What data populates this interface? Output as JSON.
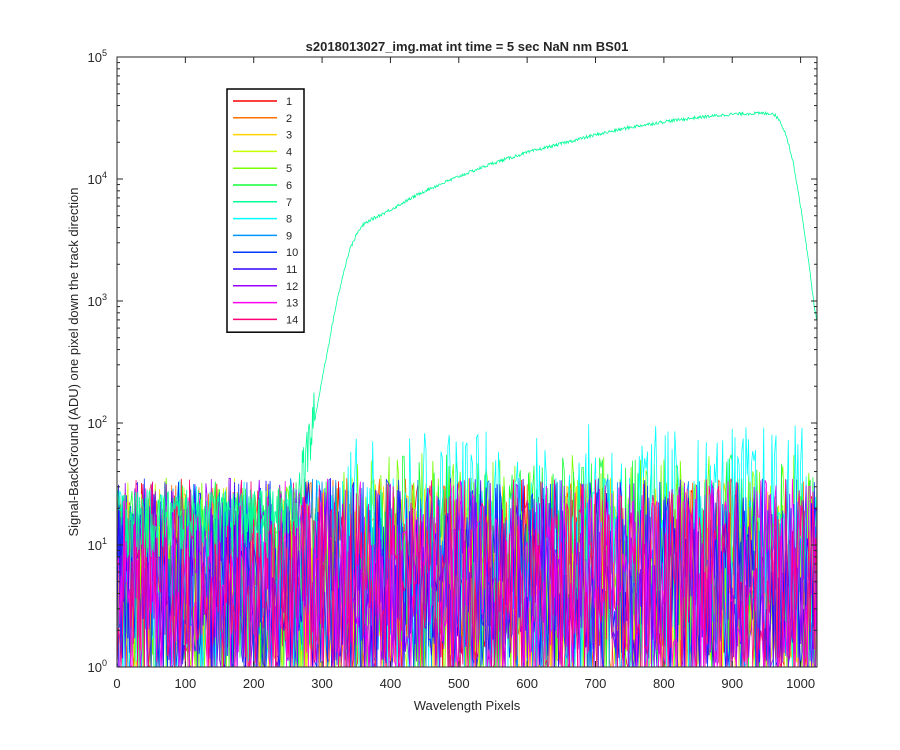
{
  "chart_data": {
    "type": "line",
    "title": "s2018013027_img.mat int time = 5 sec  NaN nm BS01",
    "xlabel": "Wavelength Pixels",
    "ylabel": "Signal-BackGround (ADU) one pixel down the track direction",
    "xlim": [
      0,
      1024
    ],
    "ylim": [
      1,
      100000
    ],
    "y_scale": "log",
    "x_ticks": [
      "0",
      "100",
      "200",
      "300",
      "400",
      "500",
      "600",
      "700",
      "800",
      "900",
      "1000"
    ],
    "y_ticks": [
      {
        "value": 1,
        "mantissa": "10",
        "exp": "0"
      },
      {
        "value": 10,
        "mantissa": "10",
        "exp": "1"
      },
      {
        "value": 100,
        "mantissa": "10",
        "exp": "2"
      },
      {
        "value": 1000,
        "mantissa": "10",
        "exp": "3"
      },
      {
        "value": 10000,
        "mantissa": "10",
        "exp": "4"
      },
      {
        "value": 100000,
        "mantissa": "10",
        "exp": "5"
      }
    ],
    "grid": false,
    "legend_position": "top-left",
    "series": [
      {
        "name": "1",
        "color": "#ff0000"
      },
      {
        "name": "2",
        "color": "#ff6e00"
      },
      {
        "name": "3",
        "color": "#ffd200"
      },
      {
        "name": "4",
        "color": "#c8ff00"
      },
      {
        "name": "5",
        "color": "#78ff00"
      },
      {
        "name": "6",
        "color": "#14ff3c"
      },
      {
        "name": "7",
        "color": "#00ff96",
        "x": [
          0,
          100,
          200,
          250,
          262,
          270,
          280,
          290,
          300,
          310,
          320,
          330,
          340,
          350,
          360,
          370,
          380,
          400,
          450,
          500,
          550,
          600,
          650,
          700,
          750,
          800,
          850,
          900,
          930,
          960,
          970,
          980,
          990,
          1000,
          1010,
          1020,
          1024
        ],
        "y": [
          15,
          15,
          15,
          16,
          20,
          30,
          55,
          110,
          230,
          450,
          900,
          1600,
          2600,
          3500,
          4200,
          4600,
          4900,
          5600,
          8000,
          10500,
          13500,
          16500,
          19500,
          23000,
          26500,
          29500,
          32000,
          34000,
          34500,
          34500,
          30000,
          22000,
          13000,
          6000,
          2500,
          900,
          700
        ]
      },
      {
        "name": "8",
        "color": "#00ffff"
      },
      {
        "name": "9",
        "color": "#0096ff"
      },
      {
        "name": "10",
        "color": "#0037ff"
      },
      {
        "name": "11",
        "color": "#3200ff"
      },
      {
        "name": "12",
        "color": "#9b00ff"
      },
      {
        "name": "13",
        "color": "#ff00f0"
      },
      {
        "name": "14",
        "color": "#ff0078"
      }
    ]
  }
}
